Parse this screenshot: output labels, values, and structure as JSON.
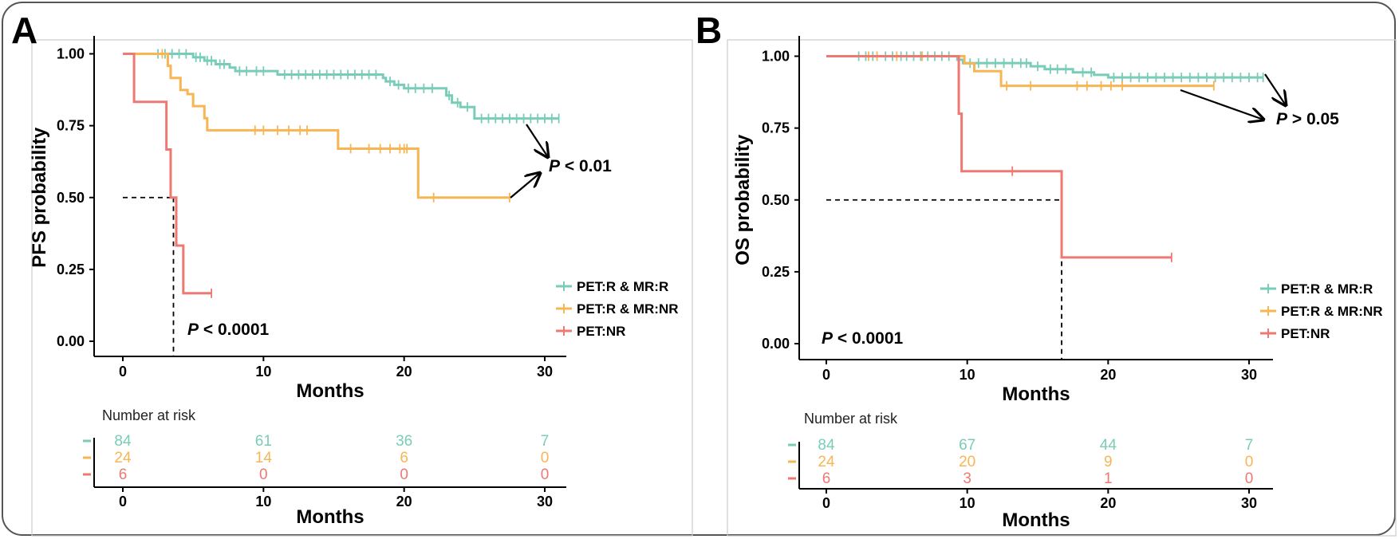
{
  "colors": {
    "teal": "#79CDB8",
    "orange": "#F8B553",
    "red": "#EE7972",
    "axis": "#000000",
    "panel_border": "#CCCCCC"
  },
  "legend": [
    "PET:R & MR:R",
    "PET:R & MR:NR",
    "PET:NR"
  ],
  "risk_table_title": "Number at risk",
  "chart_data": [
    {
      "type": "line",
      "panel": "A",
      "xlabel": "Months",
      "ylabel": "PFS probability",
      "xlim": [
        -1,
        31.5
      ],
      "ylim": [
        0,
        1.05
      ],
      "xticks": [
        "0",
        "10",
        "20",
        "30"
      ],
      "yticks": [
        "0.00",
        "0.25",
        "0.50",
        "0.75",
        "1.00"
      ],
      "median_line": {
        "x": 3.6,
        "y": 0.5
      },
      "series": [
        {
          "name": "PET:R & MR:R",
          "color": "teal",
          "steps": [
            [
              0,
              1
            ],
            [
              5,
              0.988
            ],
            [
              5.8,
              0.976
            ],
            [
              6.6,
              0.964
            ],
            [
              7.6,
              0.952
            ],
            [
              8,
              0.94
            ],
            [
              11,
              0.928
            ],
            [
              18.5,
              0.916
            ],
            [
              18.7,
              0.904
            ],
            [
              19.3,
              0.892
            ],
            [
              20,
              0.88
            ],
            [
              23,
              0.855
            ],
            [
              23.4,
              0.83
            ],
            [
              24,
              0.815
            ],
            [
              25,
              0.775
            ],
            [
              31,
              0.775
            ]
          ],
          "censors": [
            2.5,
            3,
            3.5,
            4,
            4.5,
            5.2,
            5.5,
            6,
            6.3,
            6.9,
            7.2,
            8.3,
            8.8,
            9.5,
            10,
            11.5,
            12,
            12.5,
            13,
            13.5,
            14,
            14.5,
            15,
            15.5,
            16,
            16.5,
            17,
            17.5,
            18,
            19,
            19.6,
            20.3,
            20.8,
            21.4,
            22,
            23.2,
            23.8,
            24.5,
            25.5,
            26,
            26.5,
            27,
            27.5,
            28,
            28.5,
            29,
            29.5,
            30,
            30.5,
            31
          ]
        },
        {
          "name": "PET:R & MR:NR",
          "color": "orange",
          "steps": [
            [
              0,
              1
            ],
            [
              3.2,
              0.958
            ],
            [
              3.4,
              0.916
            ],
            [
              4.1,
              0.874
            ],
            [
              4.6,
              0.86
            ],
            [
              5,
              0.818
            ],
            [
              5.8,
              0.776
            ],
            [
              6,
              0.734
            ],
            [
              15.3,
              0.67
            ],
            [
              21,
              0.5
            ],
            [
              27.5,
              0.5
            ]
          ],
          "censors": [
            2.8,
            9.4,
            10,
            11,
            11.8,
            12.6,
            13.1,
            16.2,
            17.5,
            18.3,
            19,
            19.7,
            20,
            20.2,
            22.1,
            27.5
          ]
        },
        {
          "name": "PET:NR",
          "color": "red",
          "steps": [
            [
              0,
              1
            ],
            [
              0.8,
              0.833
            ],
            [
              3.1,
              0.667
            ],
            [
              3.4,
              0.5
            ],
            [
              3.8,
              0.333
            ],
            [
              4.3,
              0.167
            ],
            [
              6.3,
              0.167
            ]
          ],
          "censors": [
            6.3
          ]
        }
      ],
      "p_values": [
        {
          "italic": "P",
          "text": " < 0.01"
        },
        {
          "italic": "P",
          "text": " < 0.0001"
        }
      ],
      "risk_table": {
        "xlabel": "Months",
        "xticks": [
          "0",
          "10",
          "20",
          "30"
        ],
        "rows": [
          {
            "color": "teal",
            "values": [
              "84",
              "61",
              "36",
              "7"
            ]
          },
          {
            "color": "orange",
            "values": [
              "24",
              "14",
              "6",
              "0"
            ]
          },
          {
            "color": "red",
            "values": [
              "6",
              "0",
              "0",
              "0"
            ]
          }
        ]
      }
    },
    {
      "type": "line",
      "panel": "B",
      "xlabel": "Months",
      "ylabel": "OS probability",
      "xlim": [
        -1,
        31.5
      ],
      "ylim": [
        0,
        1.05
      ],
      "xticks": [
        "0",
        "10",
        "20",
        "30"
      ],
      "yticks": [
        "0.00",
        "0.25",
        "0.50",
        "0.75",
        "1.00"
      ],
      "median_line": {
        "x": 16.7,
        "y": 0.5
      },
      "series": [
        {
          "name": "PET:R & MR:R",
          "color": "teal",
          "steps": [
            [
              0,
              1
            ],
            [
              9.3,
              0.988
            ],
            [
              9.7,
              0.976
            ],
            [
              14.5,
              0.965
            ],
            [
              15.5,
              0.955
            ],
            [
              17.5,
              0.944
            ],
            [
              19,
              0.935
            ],
            [
              20,
              0.926
            ],
            [
              31,
              0.926
            ]
          ],
          "censors": [
            2.3,
            2.8,
            3.3,
            4.2,
            4.7,
            5.3,
            5.7,
            6.2,
            6.7,
            7.2,
            7.7,
            8.2,
            8.7,
            10.2,
            10.8,
            11.4,
            12,
            12.6,
            13.2,
            13.8,
            14.2,
            15,
            15.9,
            16.4,
            17,
            18.2,
            18.8,
            20.4,
            21,
            21.6,
            22.2,
            22.8,
            23.4,
            24,
            24.6,
            25.2,
            25.8,
            26.4,
            27,
            27.6,
            28.2,
            28.8,
            29.4,
            30,
            30.6,
            31
          ]
        },
        {
          "name": "PET:R & MR:NR",
          "color": "orange",
          "steps": [
            [
              0,
              1
            ],
            [
              9.8,
              0.975
            ],
            [
              10.5,
              0.948
            ],
            [
              12.4,
              0.897
            ],
            [
              27.5,
              0.897
            ]
          ],
          "censors": [
            3,
            3.6,
            5,
            6.8,
            12.8,
            14.5,
            17.8,
            18.5,
            19.5,
            20.2,
            21,
            27.5
          ]
        },
        {
          "name": "PET:NR",
          "color": "red",
          "steps": [
            [
              0,
              1
            ],
            [
              9.4,
              0.8
            ],
            [
              9.6,
              0.6
            ],
            [
              16.7,
              0.3
            ],
            [
              24.5,
              0.3
            ]
          ],
          "censors": [
            13.2,
            24.5
          ]
        }
      ],
      "p_values": [
        {
          "italic": "P",
          "text": " > 0.05"
        },
        {
          "italic": "P",
          "text": " < 0.0001"
        }
      ],
      "risk_table": {
        "xlabel": "Months",
        "xticks": [
          "0",
          "10",
          "20",
          "30"
        ],
        "rows": [
          {
            "color": "teal",
            "values": [
              "84",
              "67",
              "44",
              "7"
            ]
          },
          {
            "color": "orange",
            "values": [
              "24",
              "20",
              "9",
              "0"
            ]
          },
          {
            "color": "red",
            "values": [
              "6",
              "3",
              "1",
              "0"
            ]
          }
        ]
      }
    }
  ]
}
